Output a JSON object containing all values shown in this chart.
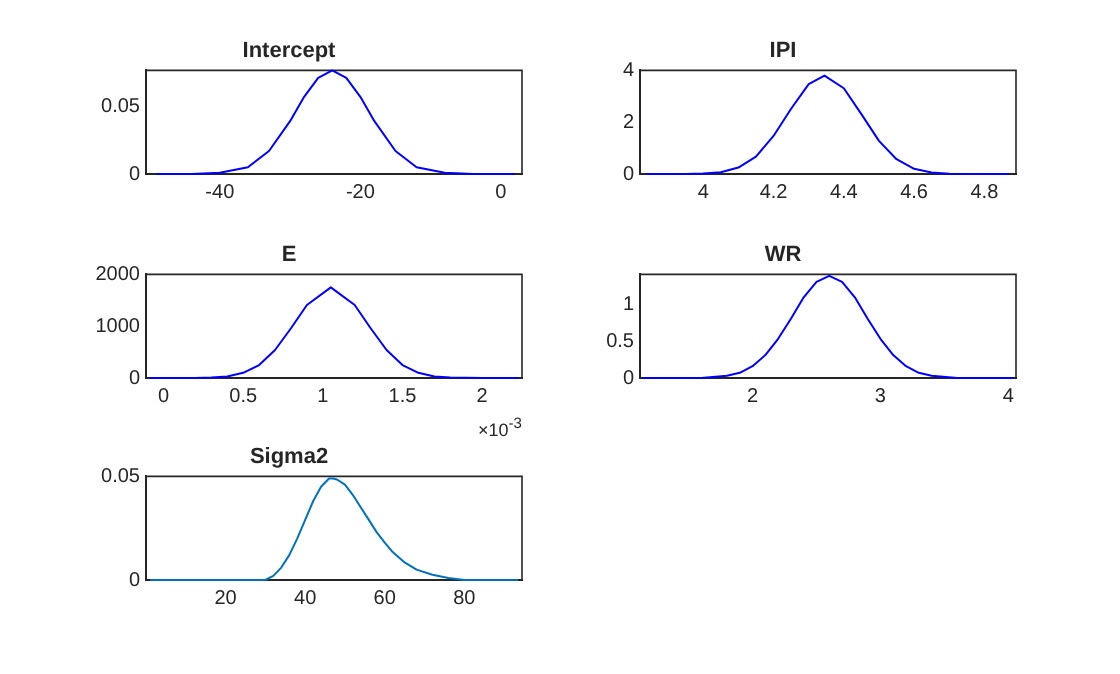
{
  "chart_data": [
    {
      "type": "line",
      "title": "Intercept",
      "marker": "none",
      "x": [
        -49,
        -44,
        -40,
        -36,
        -33,
        -30,
        -28,
        -26,
        -24,
        -22,
        -20,
        -18,
        -15,
        -12,
        -8,
        -4,
        0,
        2
      ],
      "series": [
        {
          "color": "#0000ff",
          "values": [
            0,
            0,
            0.001,
            0.005,
            0.017,
            0.039,
            0.057,
            0.071,
            0.0765,
            0.071,
            0.057,
            0.039,
            0.017,
            0.005,
            0.001,
            0,
            0,
            0
          ]
        }
      ],
      "xlim": [
        -50.5,
        3
      ],
      "xticks": [
        -40,
        -20,
        0
      ],
      "ylim": [
        0,
        0.0765
      ],
      "yticks": [
        0,
        0.05
      ]
    },
    {
      "type": "line",
      "title": "IPI",
      "marker": "none",
      "x": [
        3.84,
        3.95,
        4.0,
        4.05,
        4.1,
        4.15,
        4.2,
        4.25,
        4.3,
        4.345,
        4.4,
        4.45,
        4.5,
        4.55,
        4.6,
        4.65,
        4.7,
        4.8,
        4.87
      ],
      "series": [
        {
          "color": "#0000ff",
          "values": [
            0,
            0,
            0.02,
            0.07,
            0.25,
            0.67,
            1.47,
            2.52,
            3.47,
            3.8,
            3.31,
            2.31,
            1.28,
            0.57,
            0.2,
            0.06,
            0.01,
            0,
            0
          ]
        }
      ],
      "xlim": [
        3.82,
        4.89
      ],
      "xticks": [
        4,
        4.2,
        4.4,
        4.6,
        4.8
      ],
      "ylim": [
        0,
        4
      ],
      "yticks": [
        0,
        2,
        4
      ]
    },
    {
      "type": "line",
      "title": "E",
      "marker": "none",
      "annotations": [
        "×10$^{-3}$"
      ],
      "x": [
        -0.09,
        0.2,
        0.3,
        0.4,
        0.5,
        0.6,
        0.7,
        0.8,
        0.9,
        1.05,
        1.2,
        1.3,
        1.4,
        1.5,
        1.6,
        1.7,
        1.8,
        2.0,
        2.23
      ],
      "series": [
        {
          "color": "#0000ff",
          "values": [
            0,
            0,
            10,
            30,
            100,
            250,
            540,
            960,
            1410,
            1750,
            1410,
            960,
            540,
            250,
            100,
            30,
            10,
            0,
            0
          ]
        }
      ],
      "xlim": [
        -0.11,
        2.25
      ],
      "xticks": [
        0,
        0.5,
        1,
        1.5,
        2
      ],
      "ylim": [
        0,
        2000
      ],
      "yticks": [
        0,
        1000,
        2000
      ]
    },
    {
      "type": "line",
      "title": "WR",
      "marker": "none",
      "x": [
        1.14,
        1.6,
        1.8,
        1.9,
        2.0,
        2.1,
        2.2,
        2.3,
        2.4,
        2.5,
        2.6,
        2.7,
        2.8,
        2.9,
        3.0,
        3.1,
        3.2,
        3.3,
        3.4,
        3.6,
        4.04
      ],
      "series": [
        {
          "color": "#0000ff",
          "values": [
            0,
            0,
            0.03,
            0.07,
            0.16,
            0.31,
            0.53,
            0.8,
            1.09,
            1.3,
            1.38,
            1.3,
            1.09,
            0.8,
            0.53,
            0.31,
            0.16,
            0.07,
            0.03,
            0,
            0
          ]
        }
      ],
      "xlim": [
        1.12,
        4.06
      ],
      "xticks": [
        2,
        3,
        4
      ],
      "ylim": [
        0,
        1.4
      ],
      "yticks": [
        0,
        0.5,
        1
      ]
    },
    {
      "type": "line",
      "title": "Sigma2",
      "marker": "none",
      "x": [
        1,
        28,
        30,
        32,
        34,
        36,
        38,
        40,
        42,
        44,
        46,
        47,
        48,
        50,
        52,
        54,
        56,
        58,
        60,
        62,
        65,
        68,
        72,
        76,
        80,
        85,
        93.5
      ],
      "series": [
        {
          "color": "#0072bd",
          "values": [
            0,
            0,
            0,
            0.002,
            0.006,
            0.012,
            0.02,
            0.029,
            0.038,
            0.045,
            0.049,
            0.049,
            0.0485,
            0.046,
            0.041,
            0.035,
            0.029,
            0.023,
            0.018,
            0.0135,
            0.0085,
            0.005,
            0.0025,
            0.001,
            0,
            0,
            0
          ]
        }
      ],
      "xlim": [
        0,
        94.5
      ],
      "xticks": [
        20,
        40,
        60,
        80
      ],
      "ylim": [
        0,
        0.05
      ],
      "yticks": [
        0,
        0.05
      ]
    }
  ]
}
